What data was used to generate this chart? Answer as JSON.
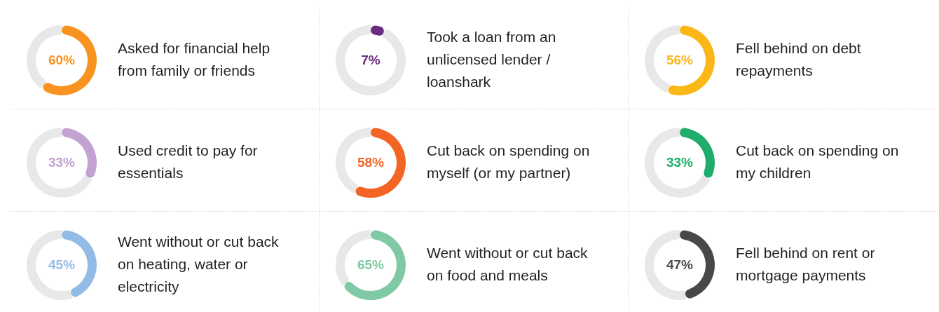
{
  "chart_data": [
    {
      "type": "donut",
      "title": "Asked for financial help from family or friends",
      "categories": [
        null,
        null
      ],
      "values": [
        60,
        40
      ],
      "colors": [
        "#f7931e",
        "#e8e8e8"
      ],
      "value_labels": [
        "60%",
        null
      ]
    },
    {
      "type": "donut",
      "title": "Took a loan from an unlicensed lender / loanshark",
      "categories": [
        null,
        null
      ],
      "values": [
        7,
        93
      ],
      "colors": [
        "#6a2c80",
        "#e8e8e8"
      ],
      "value_labels": [
        "7%",
        null
      ]
    },
    {
      "type": "donut",
      "title": "Fell behind on debt repayments",
      "categories": [
        null,
        null
      ],
      "values": [
        56,
        44
      ],
      "colors": [
        "#fbb617",
        "#e8e8e8"
      ],
      "value_labels": [
        "56%",
        null
      ]
    },
    {
      "type": "donut",
      "title": "Used credit to pay for essentials",
      "categories": [
        null,
        null
      ],
      "values": [
        33,
        67
      ],
      "colors": [
        "#c3a2d2",
        "#e8e8e8"
      ],
      "value_labels": [
        "33%",
        null
      ]
    },
    {
      "type": "donut",
      "title": "Cut back on spending on myself (or my partner)",
      "categories": [
        null,
        null
      ],
      "values": [
        58,
        42
      ],
      "colors": [
        "#f26524",
        "#e8e8e8"
      ],
      "value_labels": [
        "58%",
        null
      ]
    },
    {
      "type": "donut",
      "title": "Cut back on spending on my children",
      "categories": [
        null,
        null
      ],
      "values": [
        33,
        67
      ],
      "colors": [
        "#1fad6b",
        "#e8e8e8"
      ],
      "value_labels": [
        "33%",
        null
      ]
    },
    {
      "type": "donut",
      "title": "Went without or cut back on heating, water or electricity",
      "categories": [
        null,
        null
      ],
      "values": [
        45,
        55
      ],
      "colors": [
        "#92bce6",
        "#e8e8e8"
      ],
      "value_labels": [
        "45%",
        null
      ]
    },
    {
      "type": "donut",
      "title": "Went without or cut back on food and meals",
      "categories": [
        null,
        null
      ],
      "values": [
        65,
        35
      ],
      "colors": [
        "#7fc9a4",
        "#e8e8e8"
      ],
      "value_labels": [
        "65%",
        null
      ]
    },
    {
      "type": "donut",
      "title": "Fell behind on rent or mortgage payments",
      "categories": [
        null,
        null
      ],
      "values": [
        47,
        53
      ],
      "colors": [
        "#4a4847",
        "#e8e8e8"
      ],
      "value_labels": [
        "47%",
        null
      ]
    }
  ]
}
